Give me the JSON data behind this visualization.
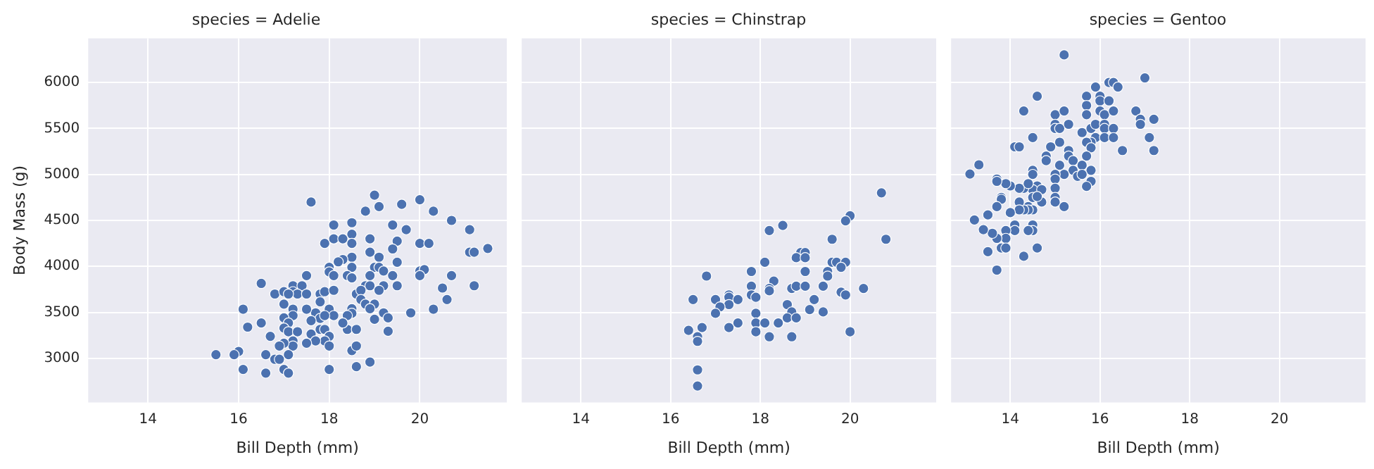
{
  "chart_data": [
    {
      "type": "scatter",
      "title": "species = Adelie",
      "xlabel": "Bill Depth (mm)",
      "ylabel": "Body Mass (g)",
      "color": "#4c72b0",
      "marker": "circle",
      "grid": true,
      "xlim": [
        12.68,
        21.92
      ],
      "ylim": [
        2520,
        6480
      ],
      "xticks": [
        14,
        16,
        18,
        20
      ],
      "yticks": [
        3000,
        3500,
        4000,
        4500,
        5000,
        5500,
        6000
      ],
      "x": [
        17.6,
        19.0,
        20.0,
        18.8,
        19.1,
        19.6,
        20.3,
        20.7,
        21.1,
        18.1,
        18.5,
        19.4,
        19.7,
        17.9,
        18.1,
        18.3,
        18.5,
        18.5,
        18.9,
        19.5,
        19.4,
        20.0,
        20.2,
        18.9,
        18.5,
        18.3,
        18.2,
        19.1,
        19.5,
        21.1,
        21.2,
        21.5,
        18.0,
        18.0,
        18.5,
        19.0,
        19.1,
        18.9,
        19.2,
        18.1,
        18.4,
        18.5,
        19.4,
        20.0,
        20.1,
        20.0,
        20.7,
        21.2,
        20.5,
        20.6,
        20.3,
        19.8,
        17.5,
        16.5,
        16.8,
        17.0,
        17.2,
        17.4,
        17.2,
        17.3,
        17.1,
        17.5,
        17.8,
        17.9,
        18.1,
        17.8,
        17.0,
        18.8,
        18.9,
        19.2,
        18.6,
        18.7,
        19.1,
        19.5,
        18.7,
        18.8,
        19.0,
        18.9,
        18.5,
        18.5,
        18.4,
        19.2,
        19.3,
        19.0,
        19.3,
        18.4,
        18.6,
        18.3,
        18.0,
        18.1,
        17.7,
        17.5,
        17.8,
        17.9,
        17.6,
        17.2,
        17.2,
        17.0,
        17.1,
        17.0,
        17.1,
        17.3,
        17.8,
        17.9,
        18.0,
        17.9,
        17.6,
        17.7,
        17.5,
        17.2,
        17.2,
        17.0,
        16.9,
        18.0,
        18.5,
        18.6,
        16.7,
        16.5,
        16.2,
        16.1,
        16.6,
        17.1,
        16.0,
        15.9,
        15.5,
        16.8,
        16.9,
        16.1,
        16.6,
        17.0,
        17.1,
        18.0,
        18.6,
        18.9
      ],
      "values": [
        4700,
        4775,
        4725,
        4600,
        4650,
        4675,
        4600,
        4500,
        4400,
        4450,
        4475,
        4450,
        4400,
        4250,
        4300,
        4300,
        4350,
        4250,
        4300,
        4275,
        4190,
        4250,
        4250,
        4155,
        4100,
        4075,
        4050,
        4100,
        4045,
        4155,
        4155,
        4195,
        3990,
        3940,
        3990,
        3990,
        3990,
        3900,
        3950,
        3900,
        3900,
        3875,
        3900,
        3950,
        3965,
        3900,
        3900,
        3790,
        3765,
        3640,
        3535,
        3495,
        3900,
        3815,
        3700,
        3725,
        3790,
        3790,
        3725,
        3700,
        3700,
        3700,
        3700,
        3725,
        3740,
        3615,
        3590,
        3790,
        3790,
        3790,
        3700,
        3740,
        3740,
        3790,
        3640,
        3590,
        3590,
        3540,
        3540,
        3490,
        3465,
        3495,
        3440,
        3425,
        3295,
        3315,
        3315,
        3385,
        3535,
        3465,
        3495,
        3535,
        3435,
        3465,
        3410,
        3535,
        3465,
        3440,
        3385,
        3330,
        3290,
        3290,
        3315,
        3315,
        3240,
        3190,
        3265,
        3190,
        3165,
        3190,
        3135,
        3165,
        3135,
        3135,
        3085,
        3135,
        3240,
        3385,
        3340,
        3535,
        3040,
        3040,
        3075,
        3040,
        3040,
        2990,
        2990,
        2880,
        2840,
        2880,
        2840,
        2880,
        2910,
        2960
      ]
    },
    {
      "type": "scatter",
      "title": "species = Chinstrap",
      "xlabel": "Bill Depth (mm)",
      "color": "#4c72b0",
      "marker": "circle",
      "grid": true,
      "tick_labels": "x",
      "xlim": [
        12.68,
        21.92
      ],
      "ylim": [
        2520,
        6480
      ],
      "xticks": [
        14,
        16,
        18,
        20
      ],
      "yticks": [
        3000,
        3500,
        4000,
        4500,
        5000,
        5500,
        6000
      ],
      "x": [
        20.7,
        20.0,
        19.9,
        20.8,
        18.5,
        18.2,
        19.6,
        18.9,
        19.0,
        18.8,
        19.0,
        18.1,
        19.6,
        19.7,
        19.9,
        19.8,
        19.5,
        19.5,
        19.0,
        17.8,
        16.8,
        18.3,
        17.8,
        18.2,
        18.2,
        18.7,
        18.8,
        19.0,
        19.4,
        19.8,
        19.9,
        20.3,
        17.8,
        17.9,
        17.3,
        17.3,
        17.5,
        17.0,
        16.5,
        17.3,
        17.1,
        17.0,
        18.6,
        19.2,
        19.1,
        19.4,
        18.7,
        18.6,
        18.8,
        17.9,
        17.9,
        18.1,
        18.4,
        17.5,
        17.3,
        16.7,
        16.4,
        16.6,
        16.6,
        17.9,
        18.2,
        18.7,
        20.0,
        16.6,
        16.6
      ],
      "values": [
        4800,
        4550,
        4495,
        4295,
        4445,
        4390,
        4295,
        4150,
        4150,
        4095,
        4095,
        4045,
        4045,
        4045,
        4045,
        3990,
        3945,
        3895,
        3945,
        3945,
        3895,
        3840,
        3785,
        3760,
        3735,
        3760,
        3785,
        3785,
        3785,
        3720,
        3690,
        3760,
        3690,
        3665,
        3690,
        3665,
        3640,
        3640,
        3640,
        3585,
        3560,
        3490,
        3585,
        3640,
        3530,
        3505,
        3505,
        3440,
        3440,
        3490,
        3385,
        3385,
        3385,
        3385,
        3335,
        3335,
        3305,
        3235,
        3185,
        3290,
        3235,
        3235,
        3290,
        2875,
        2700
      ]
    },
    {
      "type": "scatter",
      "title": "species = Gentoo",
      "xlabel": "Bill Depth (mm)",
      "color": "#4c72b0",
      "marker": "circle",
      "grid": true,
      "tick_labels": "x",
      "xlim": [
        12.68,
        21.92
      ],
      "ylim": [
        2520,
        6480
      ],
      "xticks": [
        14,
        16,
        18,
        20
      ],
      "yticks": [
        3000,
        3500,
        4000,
        4500,
        5000,
        5500,
        6000
      ],
      "x": [
        15.2,
        17.0,
        16.2,
        16.3,
        16.4,
        15.9,
        14.6,
        15.7,
        16.0,
        16.0,
        16.2,
        15.7,
        15.7,
        16.0,
        16.1,
        16.3,
        14.3,
        15.0,
        15.2,
        16.8,
        16.9,
        16.9,
        17.2,
        15.0,
        15.0,
        15.1,
        15.3,
        15.6,
        15.8,
        15.9,
        16.1,
        16.1,
        16.3,
        15.9,
        16.1,
        16.3,
        15.8,
        15.7,
        15.8,
        15.7,
        17.1,
        17.2,
        16.5,
        14.5,
        14.1,
        14.2,
        15.1,
        14.8,
        14.8,
        15.3,
        15.3,
        15.4,
        15.1,
        14.9,
        15.6,
        15.4,
        15.8,
        15.5,
        15.6,
        15.8,
        15.7,
        15.2,
        15.0,
        15.0,
        15.0,
        15.0,
        15.0,
        15.2,
        14.5,
        14.5,
        14.6,
        14.5,
        14.7,
        14.7,
        14.5,
        14.6,
        14.3,
        14.2,
        14.4,
        14.0,
        13.9,
        13.7,
        13.7,
        13.8,
        13.8,
        13.7,
        14.4,
        14.5,
        14.4,
        14.3,
        14.2,
        14.2,
        14.0,
        13.1,
        13.3,
        13.5,
        13.2,
        14.1,
        14.1,
        13.9,
        13.9,
        14.5,
        14.5,
        14.4,
        13.7,
        13.6,
        13.4,
        13.8,
        13.9,
        13.5,
        14.3,
        14.6,
        13.7
      ],
      "values": [
        6300,
        6050,
        6000,
        6000,
        5950,
        5950,
        5850,
        5850,
        5850,
        5800,
        5800,
        5750,
        5650,
        5690,
        5650,
        5690,
        5690,
        5650,
        5690,
        5690,
        5600,
        5545,
        5600,
        5545,
        5500,
        5500,
        5545,
        5455,
        5500,
        5545,
        5545,
        5500,
        5500,
        5400,
        5400,
        5400,
        5350,
        5350,
        5290,
        5200,
        5400,
        5260,
        5260,
        5400,
        5300,
        5300,
        5350,
        5200,
        5150,
        5260,
        5200,
        5150,
        5100,
        5300,
        5100,
        5045,
        5045,
        4980,
        5000,
        4925,
        4870,
        5000,
        5000,
        4950,
        4850,
        4750,
        4700,
        4650,
        5045,
        5000,
        4875,
        4835,
        4835,
        4700,
        4750,
        4760,
        4850,
        4850,
        4900,
        4875,
        4900,
        4950,
        4925,
        4750,
        4730,
        4650,
        4650,
        4615,
        4615,
        4615,
        4700,
        4615,
        4585,
        5005,
        5105,
        4560,
        4505,
        4450,
        4390,
        4390,
        4305,
        4450,
        4390,
        4390,
        4305,
        4360,
        4400,
        4200,
        4200,
        4160,
        4110,
        4200,
        3960
      ]
    }
  ]
}
